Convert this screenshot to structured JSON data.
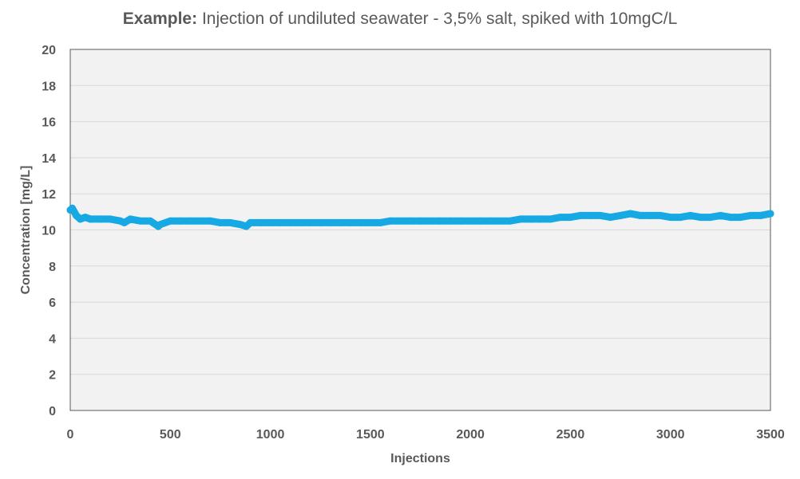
{
  "title": {
    "bold": "Example:",
    "rest": " Injection of undiluted seawater - 3,5% salt, spiked with 10mgC/L"
  },
  "chart_data": {
    "type": "line",
    "title": "Example: Injection of undiluted seawater - 3,5% salt, spiked with 10mgC/L",
    "xlabel": "Injections",
    "ylabel": "Concentration [mg/L]",
    "xlim": [
      0,
      3500
    ],
    "ylim": [
      0,
      20
    ],
    "xticks": [
      "0",
      "500",
      "1000",
      "1500",
      "2000",
      "2500",
      "3000",
      "3500"
    ],
    "yticks": [
      "0",
      "2",
      "4",
      "6",
      "8",
      "10",
      "12",
      "14",
      "16",
      "18",
      "20"
    ],
    "grid": "horizontal",
    "background": "#f2f2f2",
    "series": [
      {
        "color": "#16a9e3",
        "x": [
          0,
          10,
          20,
          30,
          50,
          75,
          100,
          150,
          200,
          250,
          270,
          300,
          350,
          400,
          440,
          450,
          500,
          550,
          600,
          650,
          700,
          750,
          800,
          850,
          880,
          900,
          950,
          1000,
          1050,
          1100,
          1150,
          1200,
          1250,
          1300,
          1350,
          1400,
          1450,
          1500,
          1550,
          1600,
          1650,
          1700,
          1750,
          1800,
          1850,
          1900,
          1950,
          2000,
          2050,
          2100,
          2150,
          2200,
          2250,
          2300,
          2350,
          2400,
          2450,
          2500,
          2550,
          2600,
          2650,
          2700,
          2750,
          2800,
          2850,
          2900,
          2950,
          3000,
          3050,
          3100,
          3150,
          3200,
          3250,
          3300,
          3350,
          3400,
          3450,
          3500
        ],
        "y": [
          11.1,
          11.2,
          11.0,
          10.8,
          10.6,
          10.7,
          10.6,
          10.6,
          10.6,
          10.5,
          10.4,
          10.6,
          10.5,
          10.5,
          10.2,
          10.3,
          10.5,
          10.5,
          10.5,
          10.5,
          10.5,
          10.4,
          10.4,
          10.3,
          10.2,
          10.4,
          10.4,
          10.4,
          10.4,
          10.4,
          10.4,
          10.4,
          10.4,
          10.4,
          10.4,
          10.4,
          10.4,
          10.4,
          10.4,
          10.5,
          10.5,
          10.5,
          10.5,
          10.5,
          10.5,
          10.5,
          10.5,
          10.5,
          10.5,
          10.5,
          10.5,
          10.5,
          10.6,
          10.6,
          10.6,
          10.6,
          10.7,
          10.7,
          10.8,
          10.8,
          10.8,
          10.7,
          10.8,
          10.9,
          10.8,
          10.8,
          10.8,
          10.7,
          10.7,
          10.8,
          10.7,
          10.7,
          10.8,
          10.7,
          10.7,
          10.8,
          10.8,
          10.9
        ]
      }
    ]
  }
}
